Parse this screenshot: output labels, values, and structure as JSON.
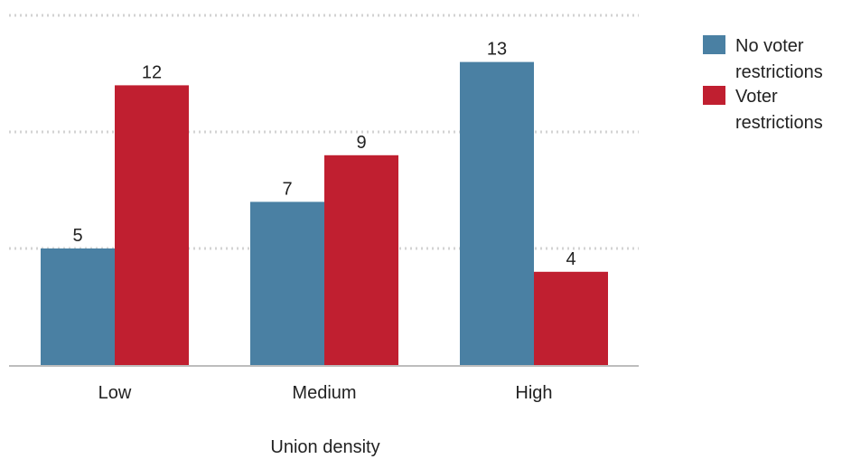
{
  "chart_data": {
    "type": "bar",
    "title": "",
    "xlabel": "Union density",
    "ylabel": "",
    "categories": [
      "Low",
      "Medium",
      "High"
    ],
    "series": [
      {
        "name": "No voter restrictions",
        "color": "#4a80a3",
        "values": [
          5,
          7,
          13
        ]
      },
      {
        "name": "Voter restrictions",
        "color": "#c01f30",
        "values": [
          12,
          9,
          4
        ]
      }
    ],
    "ylim": [
      0,
      15
    ],
    "grid": true,
    "legend_position": "top-right"
  }
}
